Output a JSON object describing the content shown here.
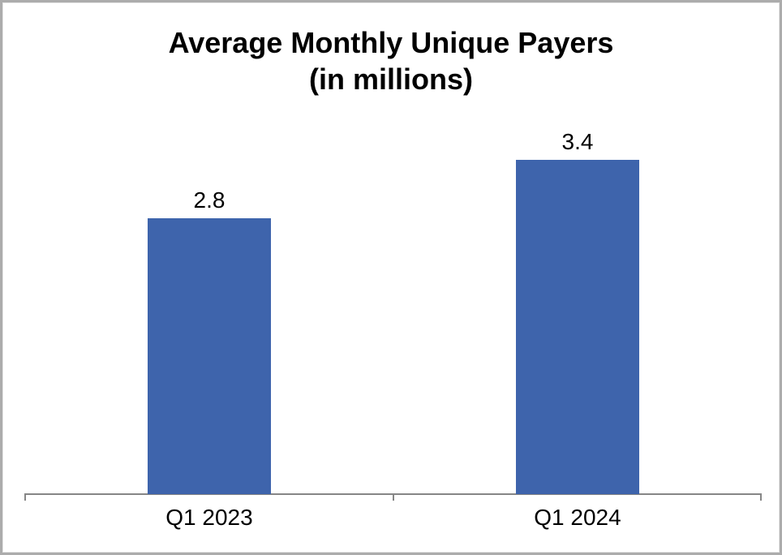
{
  "chart_data": {
    "type": "bar",
    "title": "Average Monthly Unique Payers (in millions)",
    "title_lines": [
      "Average Monthly Unique Payers",
      "(in millions)"
    ],
    "categories": [
      "Q1 2023",
      "Q1 2024"
    ],
    "values": [
      2.8,
      3.4
    ],
    "data_labels": [
      "2.8",
      "3.4"
    ],
    "xlabel": "",
    "ylabel": "",
    "ylim": [
      0,
      4
    ],
    "grid": false,
    "legend": false,
    "colors": {
      "bar": "#3E64AC",
      "axis": "#868686",
      "text": "#000000",
      "background": "#FFFFFF",
      "frame_border": "#ACACAC"
    }
  }
}
